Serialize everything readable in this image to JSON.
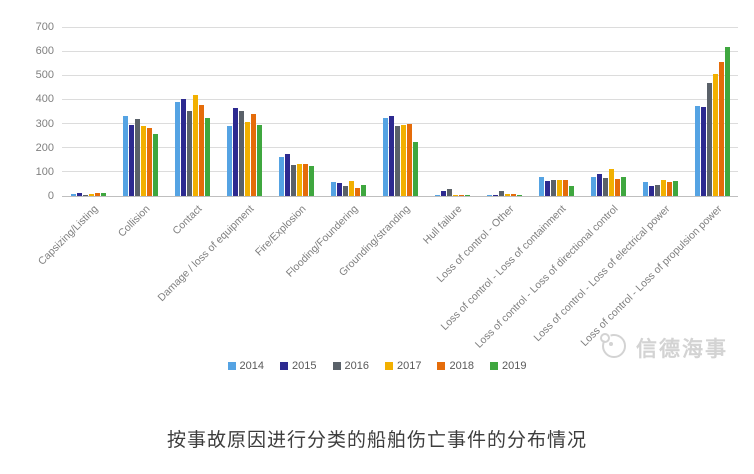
{
  "chart_data": {
    "type": "bar",
    "title": "",
    "xlabel": "",
    "ylabel": "",
    "ylim": [
      0,
      700
    ],
    "ytick_step": 100,
    "grid": true,
    "legend_position": "bottom-center",
    "categories": [
      "Capsizing/Listing",
      "Collision",
      "Contact",
      "Damage / loss of equipment",
      "Fire/Explosion",
      "Flooding/Foundering",
      "Grounding/stranding",
      "Hull failure",
      "Loss of control - Other",
      "Loss of control - Loss of containment",
      "Loss of control - Loss of directional control",
      "Loss of control - Loss of electrical power",
      "Loss of control - Loss of propulsion power"
    ],
    "series": [
      {
        "name": "2014",
        "color": "#55A3E3",
        "values": [
          8,
          330,
          390,
          290,
          160,
          58,
          325,
          5,
          3,
          80,
          78,
          58,
          373
        ]
      },
      {
        "name": "2015",
        "color": "#2D2A90",
        "values": [
          13,
          295,
          400,
          363,
          175,
          55,
          330,
          20,
          2,
          62,
          90,
          40,
          370
        ]
      },
      {
        "name": "2016",
        "color": "#5A6169",
        "values": [
          5,
          318,
          353,
          350,
          130,
          43,
          290,
          30,
          20,
          68,
          75,
          45,
          470
        ]
      },
      {
        "name": "2017",
        "color": "#F2B000",
        "values": [
          10,
          292,
          420,
          308,
          132,
          62,
          295,
          5,
          8,
          68,
          110,
          65,
          505
        ]
      },
      {
        "name": "2018",
        "color": "#E56C0A",
        "values": [
          13,
          281,
          377,
          340,
          132,
          32,
          300,
          5,
          8,
          68,
          70,
          60,
          555
        ]
      },
      {
        "name": "2019",
        "color": "#3FA73F",
        "values": [
          13,
          256,
          322,
          295,
          123,
          46,
          225,
          5,
          2,
          43,
          80,
          62,
          618
        ]
      }
    ]
  },
  "watermark": {
    "text": "信德海事"
  },
  "caption": "按事故原因进行分类的船舶伤亡事件的分布情况"
}
